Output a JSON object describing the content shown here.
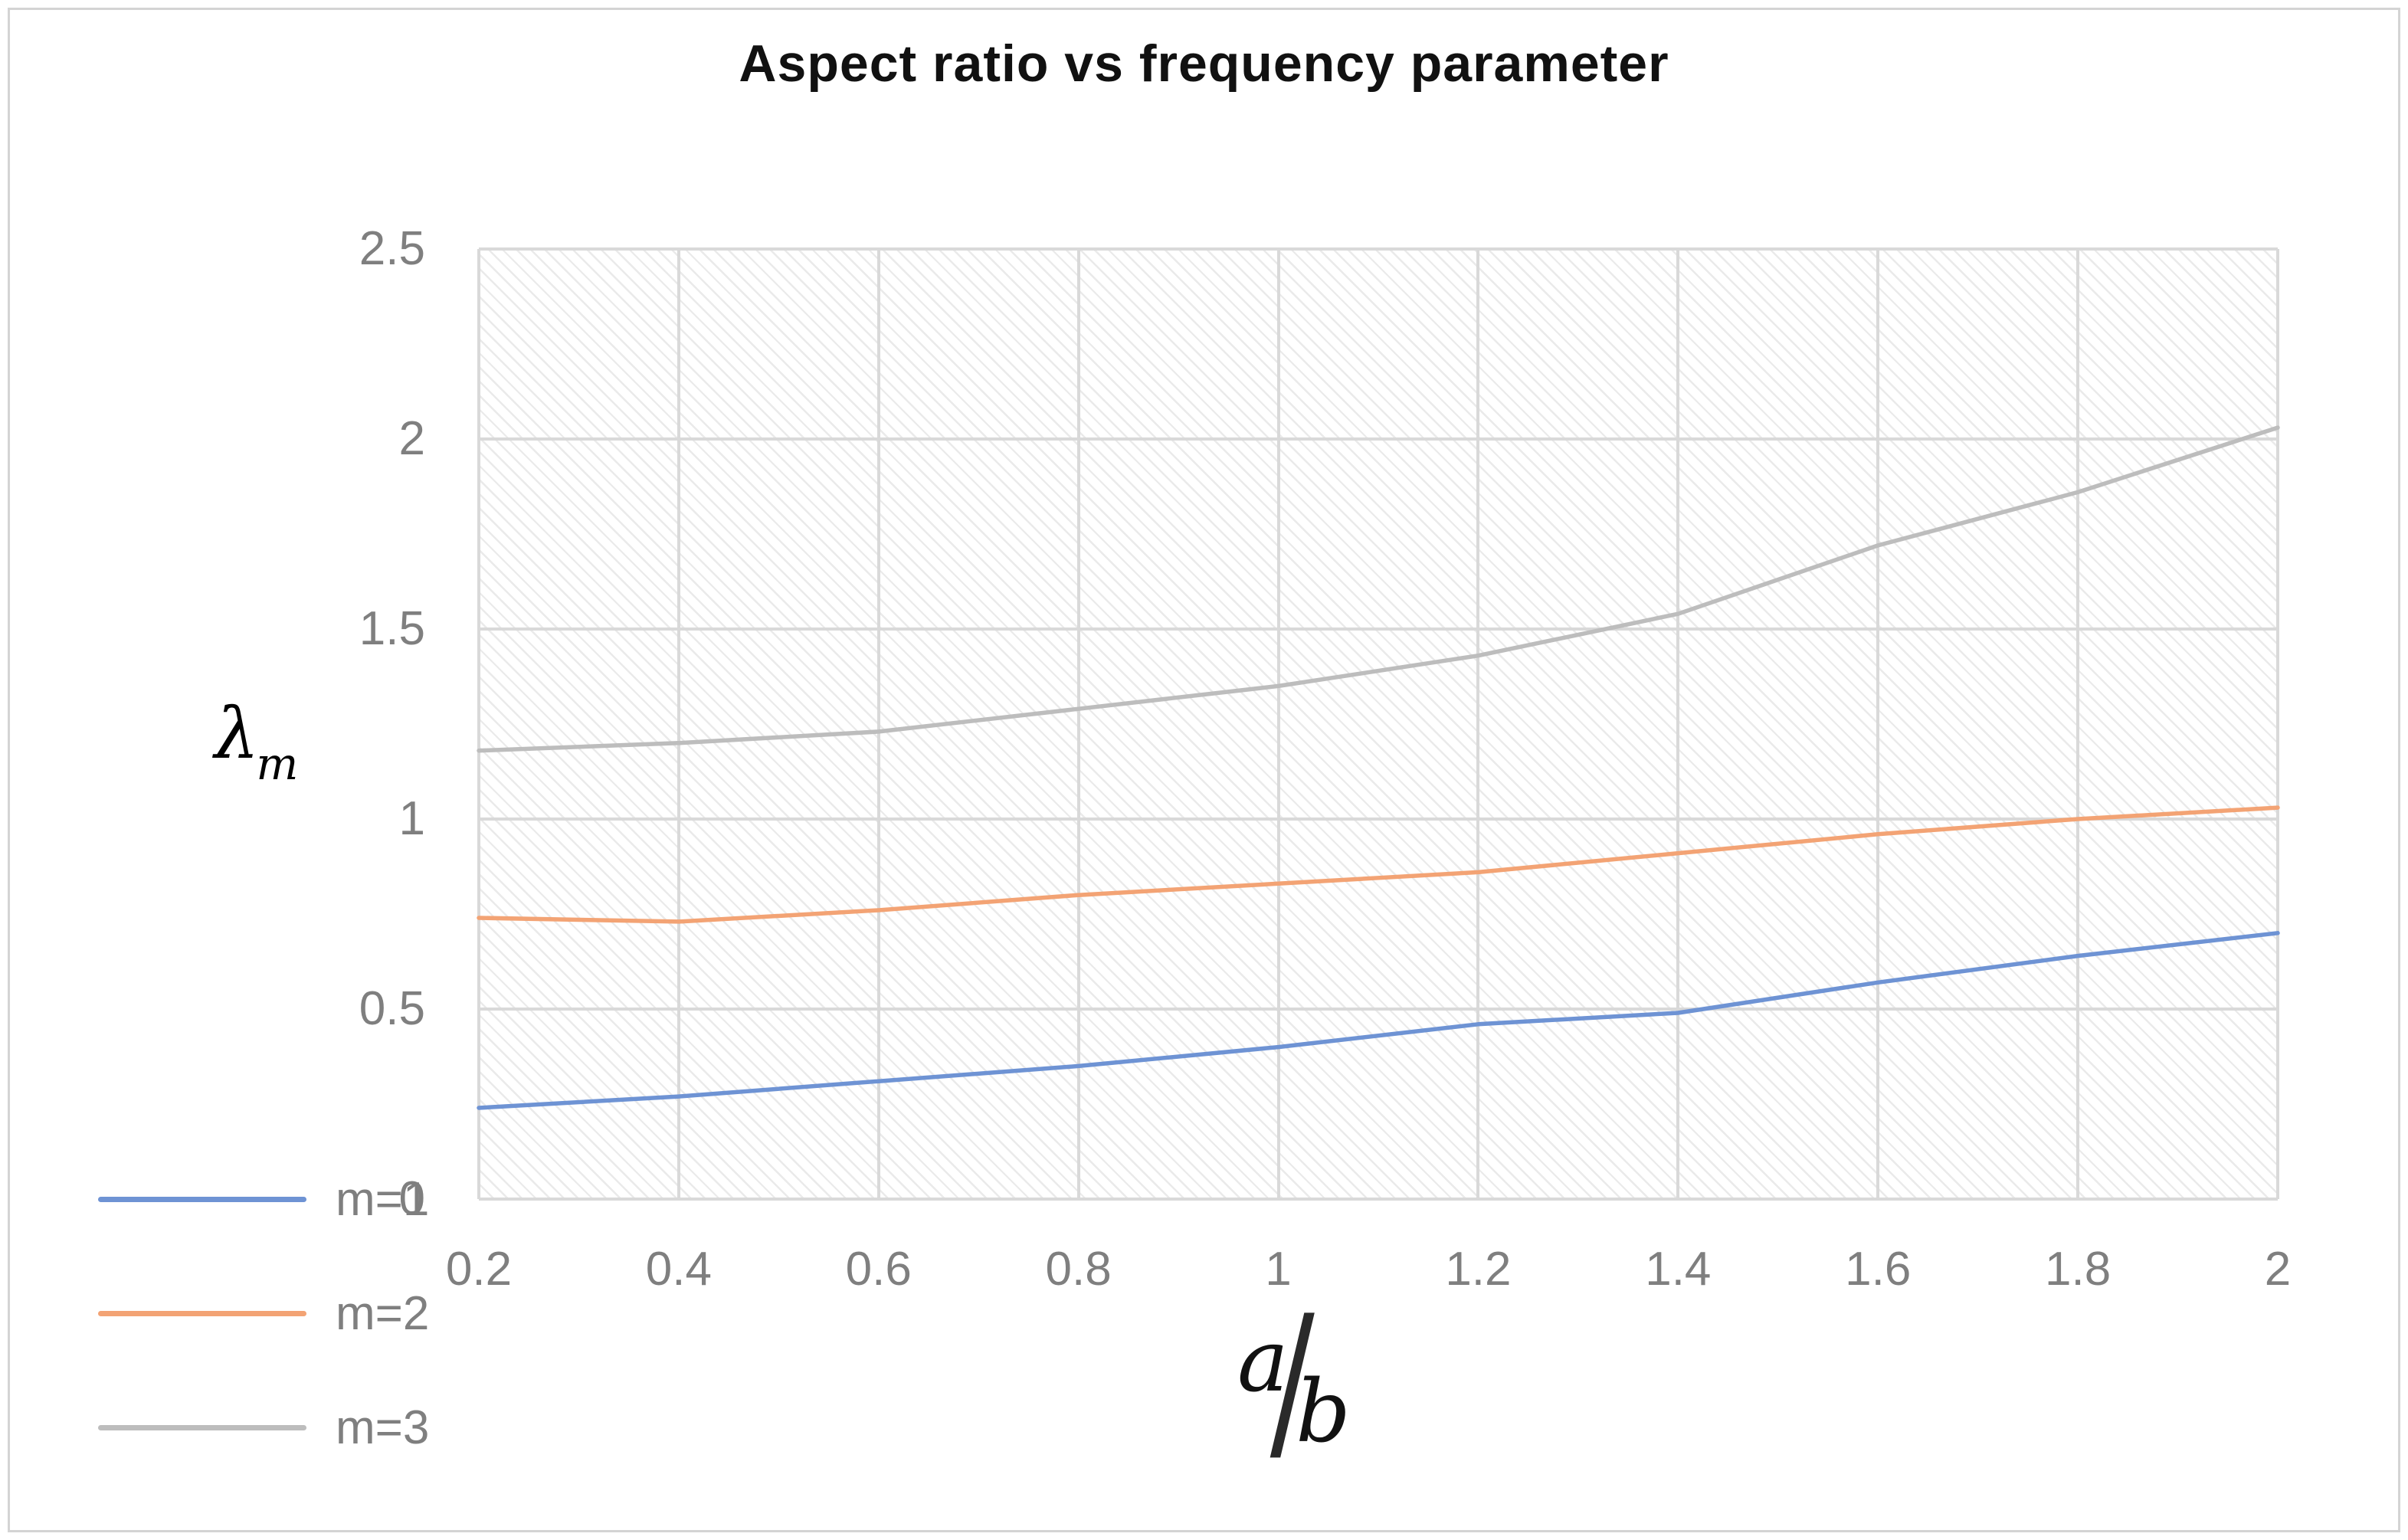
{
  "title": "Aspect ratio vs frequency parameter",
  "axes": {
    "y_label_main": "λ",
    "y_label_sub": "m",
    "x_label_numerator": "a",
    "x_label_slash": "∕",
    "x_label_denominator": "b"
  },
  "chart_data": {
    "type": "line",
    "title": "Aspect ratio vs frequency parameter",
    "xlabel": "a/b",
    "ylabel": "λm",
    "xlim": [
      0.2,
      2.0
    ],
    "ylim": [
      0,
      2.5
    ],
    "grid": "both",
    "plot_area_hatched": true,
    "legend_position": "bottom-left",
    "x": [
      0.2,
      0.4,
      0.6,
      0.8,
      1.0,
      1.2,
      1.4,
      1.6,
      1.8,
      2.0
    ],
    "x_tick_labels": [
      "0.2",
      "0.4",
      "0.6",
      "0.8",
      "1",
      "1.2",
      "1.4",
      "1.6",
      "1.8",
      "2"
    ],
    "y_ticks": [
      0,
      0.5,
      1.0,
      1.5,
      2.0,
      2.5
    ],
    "y_tick_labels": [
      "0",
      "0.5",
      "1",
      "1.5",
      "2",
      "2.5"
    ],
    "series": [
      {
        "name": "m=1",
        "color": "#6e93d4",
        "values": [
          0.24,
          0.27,
          0.31,
          0.35,
          0.4,
          0.46,
          0.49,
          0.57,
          0.64,
          0.7
        ]
      },
      {
        "name": "m=2",
        "color": "#f3a374",
        "values": [
          0.74,
          0.73,
          0.76,
          0.8,
          0.83,
          0.86,
          0.91,
          0.96,
          1.0,
          1.03
        ]
      },
      {
        "name": "m=3",
        "color": "#bdbdbd",
        "values": [
          1.18,
          1.2,
          1.23,
          1.29,
          1.35,
          1.43,
          1.54,
          1.72,
          1.86,
          2.03
        ]
      }
    ],
    "colors": {
      "gridline": "#d9d9d9",
      "hatch": "#eaeaea",
      "tick_text": "#7f7f7f",
      "title_text": "#111111"
    }
  }
}
